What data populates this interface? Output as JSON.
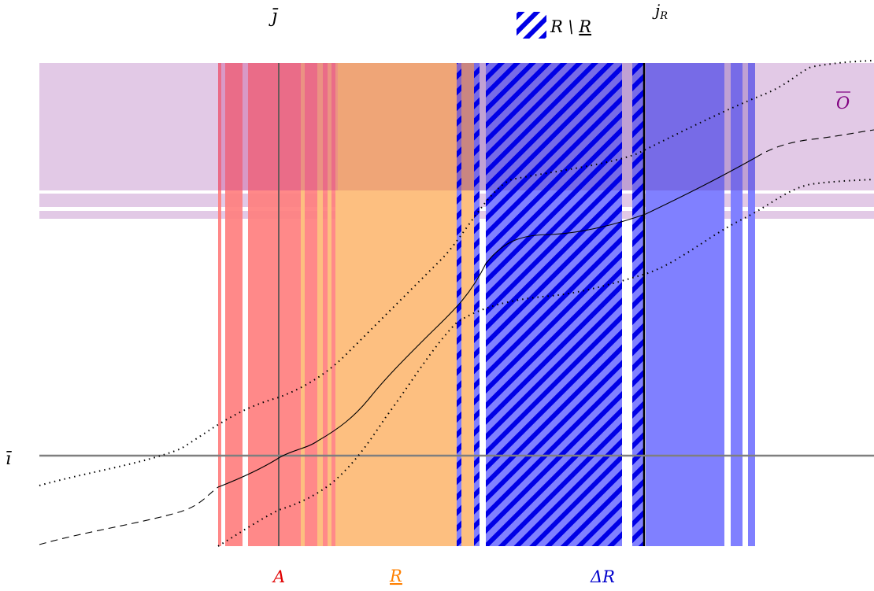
{
  "labels": {
    "j_bar": "j̄",
    "j_R_base": "j",
    "j_R_sub": "R",
    "legend_prefix": "R \\ ",
    "legend_underlined": "R",
    "O_bar": "O",
    "i_bar": "ī",
    "A": "A",
    "R_under": "R",
    "delta_R": "ΔR"
  },
  "colors": {
    "A": "#ff8080",
    "R_under": "#fdbf80",
    "delta_R": "#8080ff",
    "hatch": "#0000e6",
    "O_bar": "#e2c9e6",
    "O_text": "#800080",
    "A_text": "#e00000",
    "R_text": "#ff8000",
    "delta_text": "#0000cc",
    "axis_line": "#7f7f7f"
  },
  "regions": [
    "A",
    "R_under",
    "R_minus_R_under",
    "delta_R",
    "O_bar"
  ],
  "curves": [
    "solid",
    "dotted-upper",
    "dotted-lower",
    "dashed"
  ]
}
